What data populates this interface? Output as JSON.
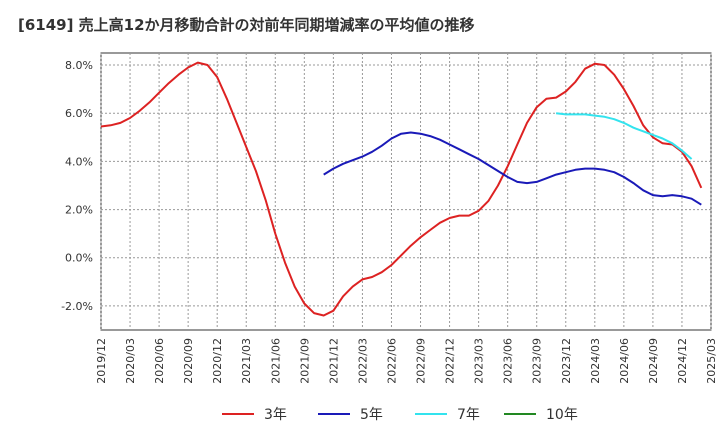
{
  "chart_data": {
    "type": "line",
    "title": "[6149]  売上高12か月移動合計の対前年同期増減率の平均値の推移",
    "xlabel": "",
    "ylabel": "",
    "ylim": [
      -3.0,
      8.5
    ],
    "yticks": [
      8.0,
      6.0,
      4.0,
      2.0,
      0.0,
      -2.0
    ],
    "ytick_labels": [
      "8.0%",
      "6.0%",
      "4.0%",
      "2.0%",
      "0.0%",
      "-2.0%"
    ],
    "x_start": "2019-12",
    "x_end": "2025-03",
    "xtick_labels": [
      "2019/12",
      "2020/03",
      "2020/06",
      "2020/09",
      "2020/12",
      "2021/03",
      "2021/06",
      "2021/09",
      "2021/12",
      "2022/03",
      "2022/06",
      "2022/09",
      "2022/12",
      "2023/03",
      "2023/06",
      "2023/09",
      "2023/12",
      "2024/03",
      "2024/06",
      "2024/09",
      "2024/12",
      "2025/03"
    ],
    "grid": true,
    "legend_position": "bottom",
    "series": [
      {
        "name": "3年",
        "color": "#dd2222",
        "start": "2019-12",
        "values": [
          5.45,
          5.5,
          5.6,
          5.8,
          6.1,
          6.45,
          6.85,
          7.25,
          7.6,
          7.9,
          8.1,
          8.0,
          7.5,
          6.6,
          5.6,
          4.6,
          3.6,
          2.4,
          1.0,
          -0.2,
          -1.2,
          -1.9,
          -2.3,
          -2.4,
          -2.2,
          -1.6,
          -1.2,
          -0.9,
          -0.8,
          -0.6,
          -0.3,
          0.1,
          0.5,
          0.85,
          1.15,
          1.45,
          1.65,
          1.75,
          1.75,
          1.95,
          2.35,
          3.0,
          3.8,
          4.7,
          5.6,
          6.25,
          6.6,
          6.65,
          6.9,
          7.3,
          7.85,
          8.05,
          8.0,
          7.6,
          7.0,
          6.3,
          5.5,
          5.0,
          4.75,
          4.7,
          4.4,
          3.8,
          2.9
        ]
      },
      {
        "name": "5年",
        "color": "#1a1ab8",
        "start": "2021-11",
        "values": [
          3.45,
          3.7,
          3.9,
          4.05,
          4.2,
          4.4,
          4.65,
          4.95,
          5.15,
          5.2,
          5.15,
          5.05,
          4.9,
          4.7,
          4.5,
          4.3,
          4.1,
          3.85,
          3.6,
          3.35,
          3.15,
          3.1,
          3.15,
          3.3,
          3.45,
          3.55,
          3.65,
          3.7,
          3.7,
          3.65,
          3.55,
          3.35,
          3.1,
          2.8,
          2.6,
          2.55,
          2.6,
          2.55,
          2.45,
          2.2
        ]
      },
      {
        "name": "7年",
        "color": "#33e3ee",
        "start": "2023-11",
        "values": [
          6.0,
          5.95,
          5.95,
          5.95,
          5.9,
          5.85,
          5.75,
          5.6,
          5.4,
          5.25,
          5.1,
          4.95,
          4.75,
          4.45,
          4.1
        ]
      },
      {
        "name": "10年",
        "color": "#228822",
        "start": "2024-12",
        "values": []
      }
    ]
  }
}
